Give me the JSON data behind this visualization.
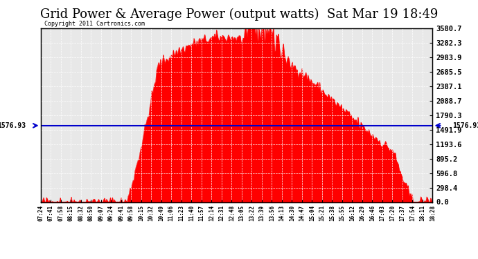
{
  "title": "Grid Power & Average Power (output watts)  Sat Mar 19 18:49",
  "copyright": "Copyright 2011 Cartronics.com",
  "avg_power": 1576.93,
  "y_max": 3580.7,
  "y_ticks": [
    0.0,
    298.4,
    596.8,
    895.2,
    1193.6,
    1491.9,
    1790.3,
    2088.7,
    2387.1,
    2685.5,
    2983.9,
    3282.3,
    3580.7
  ],
  "y_tick_labels": [
    "0.0",
    "298.4",
    "596.8",
    "895.2",
    "1193.6",
    "1491.9",
    "1790.3",
    "2088.7",
    "2387.1",
    "2685.5",
    "2983.9",
    "3282.3",
    "3580.7"
  ],
  "x_labels": [
    "07:24",
    "07:41",
    "07:58",
    "08:15",
    "08:32",
    "08:50",
    "09:07",
    "09:24",
    "09:41",
    "09:58",
    "10:15",
    "10:32",
    "10:49",
    "11:06",
    "11:23",
    "11:40",
    "11:57",
    "12:14",
    "12:31",
    "12:48",
    "13:05",
    "13:22",
    "13:39",
    "13:56",
    "14:13",
    "14:30",
    "14:47",
    "15:04",
    "15:21",
    "15:38",
    "15:55",
    "16:12",
    "16:29",
    "16:46",
    "17:03",
    "17:20",
    "17:37",
    "17:54",
    "18:11",
    "18:28"
  ],
  "bg_color": "#ffffff",
  "plot_bg_color": "#e8e8e8",
  "grid_color": "#ffffff",
  "fill_color": "#ff0000",
  "line_color": "#ff0000",
  "avg_line_color": "#0000cc",
  "title_fontsize": 13,
  "avg_label_fontsize": 8
}
